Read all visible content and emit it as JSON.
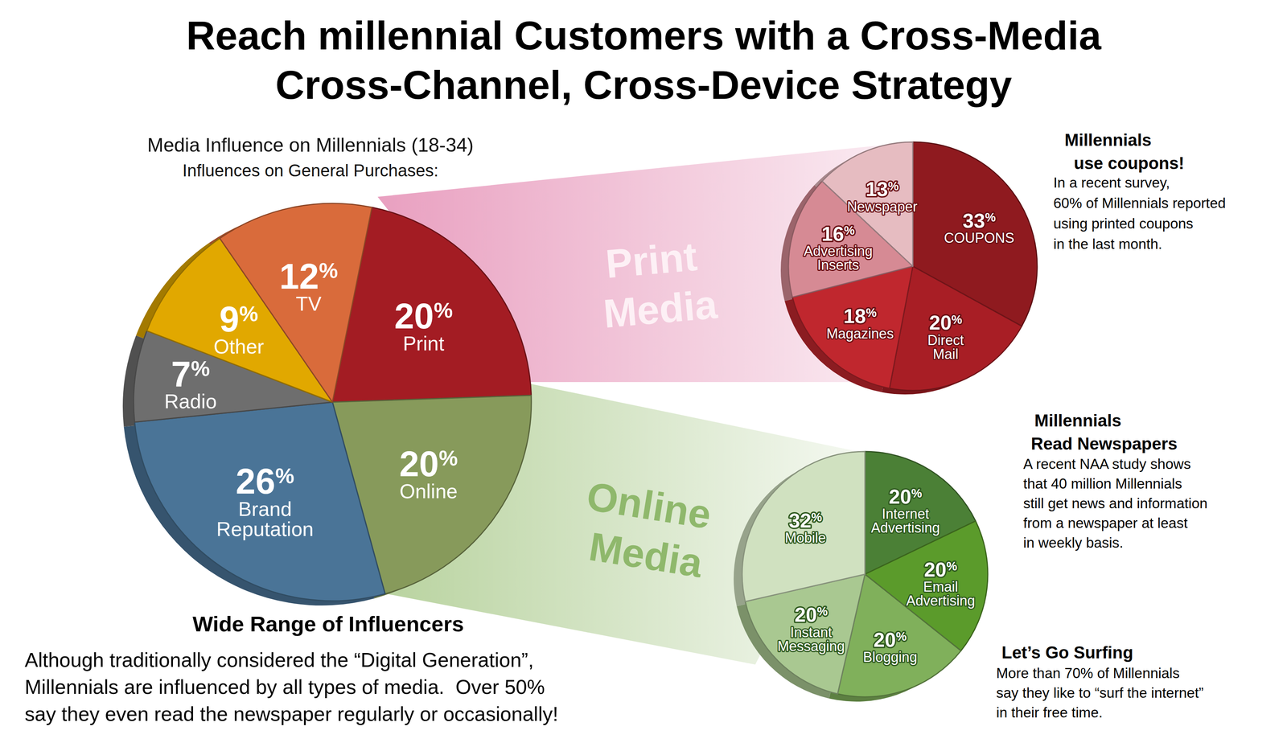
{
  "chart_data": [
    {
      "type": "pie",
      "title": [
        "Reach millennial Customers with a Cross-Media",
        "Cross-Channel, Cross-Device Strategy"
      ],
      "subtitle": [
        "Media Influence on Millennials (18-34)",
        "Influences on General Purchases:"
      ],
      "categories": [
        "Print",
        "Online",
        "Brand Reputation",
        "Radio",
        "Other",
        "TV"
      ],
      "values": [
        20,
        20,
        26,
        7,
        9,
        12
      ],
      "value_labels": [
        "20%",
        "20%",
        "26%",
        "7%",
        "9%",
        "12%"
      ],
      "colors": [
        "#a31c23",
        "#879a5b",
        "#4a7497",
        "#6e6e6e",
        "#e1a800",
        "#d96b3b"
      ],
      "data_labels": true,
      "annotations": [
        {
          "title": [
            "Wide Range of Influencers"
          ],
          "text": [
            "Although traditionally considered the “Digital Generation”,",
            "Millennials are influenced by all types of media.  Over 50%",
            "say they even read the newspaper regularly or occasionally!"
          ]
        }
      ]
    },
    {
      "type": "pie",
      "title": [
        "Print",
        "Media"
      ],
      "categories": [
        "COUPONS",
        "Direct Mail",
        "Magazines",
        "Advertising Inserts",
        "Newspaper"
      ],
      "values": [
        33,
        20,
        18,
        16,
        13
      ],
      "value_labels": [
        "33%",
        "20%",
        "18%",
        "16%",
        "13%"
      ],
      "colors": [
        "#8f1a1f",
        "#a81e25",
        "#c0272e",
        "#d68a94",
        "#e6bcc1"
      ],
      "data_labels": true,
      "annotations": [
        {
          "title": [
            "Millennials",
            "use coupons!"
          ],
          "text": [
            "In a recent survey,",
            "60% of Millennials reported",
            "using printed coupons",
            "in the last month."
          ]
        },
        {
          "title": [
            "Millennials",
            "Read Newspapers"
          ],
          "text": [
            "A recent NAA study shows",
            "that 40 million Millennials",
            "still get news and information",
            "from a newspaper at least",
            "in weekly basis."
          ]
        }
      ]
    },
    {
      "type": "pie",
      "title": [
        "Online",
        "Media"
      ],
      "categories": [
        "Internet Advertising",
        "Email Advertising",
        "Blogging",
        "Instant Messaging",
        "Mobile"
      ],
      "values": [
        20,
        20,
        20,
        20,
        32
      ],
      "value_labels": [
        "20%",
        "20%",
        "20%",
        "20%",
        "32%"
      ],
      "colors": [
        "#4b8036",
        "#5b9b2b",
        "#80b05b",
        "#a9c891",
        "#d0e1c0"
      ],
      "data_labels": true,
      "annotations": [
        {
          "title": [
            "Let’s Go Surfing"
          ],
          "text": [
            "More than 70% of Millennials",
            "say they like to “surf the internet”",
            "in their free time."
          ]
        }
      ]
    }
  ]
}
